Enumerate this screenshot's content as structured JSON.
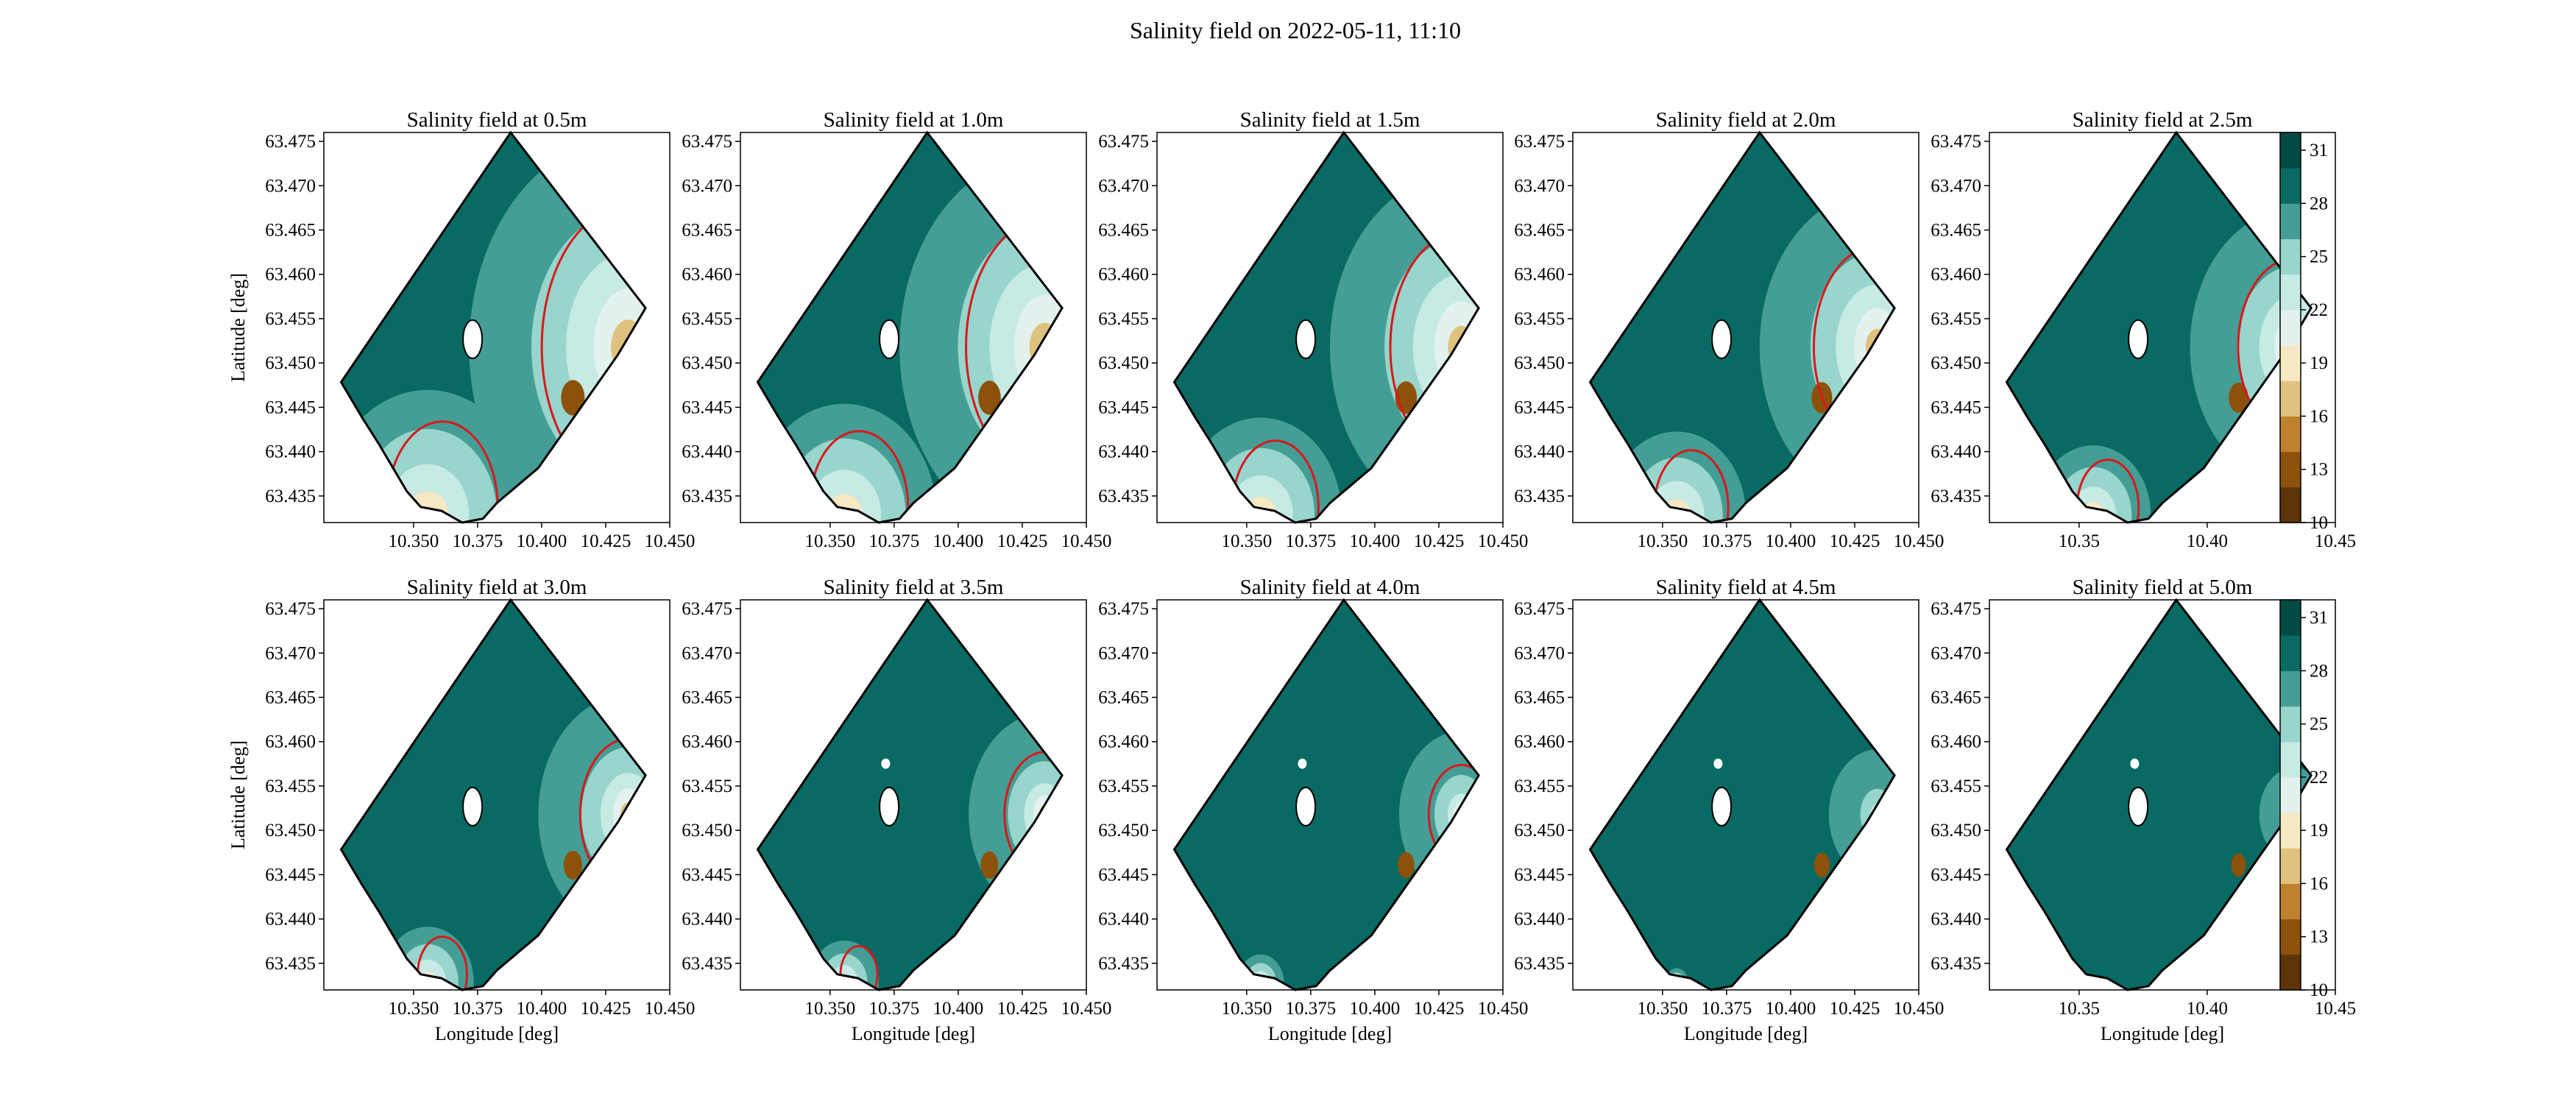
{
  "figure": {
    "suptitle": "Salinity field on 2022-05-11, 11:10"
  },
  "colors": {
    "level_fills": [
      "#5c3408",
      "#8c510a",
      "#bf812d",
      "#dfc27d",
      "#f6e8c3",
      "#e4f2ef",
      "#c7eae5",
      "#98d5cc",
      "#449e95",
      "#086a63",
      "#024b44"
    ],
    "contour_line": "#d7191c",
    "land": "#ffffff",
    "outline": "#000000"
  },
  "chart_data": [
    {
      "type": "contour",
      "title": "Salinity field at 0.5m",
      "xlabel": "",
      "ylabel": "Latitude [deg]",
      "xlim": [
        10.315,
        10.45
      ],
      "ylim": [
        63.432,
        63.476
      ],
      "xticks": [
        "10.350",
        "10.375",
        "10.400",
        "10.425",
        "10.450"
      ],
      "yticks": [
        "63.435",
        "63.440",
        "63.445",
        "63.450",
        "63.455",
        "63.460",
        "63.465",
        "63.470",
        "63.475"
      ],
      "depth_m": 0.5,
      "red_contour": true
    },
    {
      "type": "contour",
      "title": "Salinity field at 1.0m",
      "xlabel": "",
      "ylabel": "",
      "xlim": [
        10.315,
        10.45
      ],
      "ylim": [
        63.432,
        63.476
      ],
      "xticks": [
        "10.350",
        "10.375",
        "10.400",
        "10.425",
        "10.450"
      ],
      "yticks": [
        "63.435",
        "63.440",
        "63.445",
        "63.450",
        "63.455",
        "63.460",
        "63.465",
        "63.470",
        "63.475"
      ],
      "depth_m": 1.0,
      "red_contour": true
    },
    {
      "type": "contour",
      "title": "Salinity field at 1.5m",
      "xlabel": "",
      "ylabel": "",
      "xlim": [
        10.315,
        10.45
      ],
      "ylim": [
        63.432,
        63.476
      ],
      "xticks": [
        "10.350",
        "10.375",
        "10.400",
        "10.425",
        "10.450"
      ],
      "yticks": [
        "63.435",
        "63.440",
        "63.445",
        "63.450",
        "63.455",
        "63.460",
        "63.465",
        "63.470",
        "63.475"
      ],
      "depth_m": 1.5,
      "red_contour": true
    },
    {
      "type": "contour",
      "title": "Salinity field at 2.0m",
      "xlabel": "",
      "ylabel": "",
      "xlim": [
        10.315,
        10.45
      ],
      "ylim": [
        63.432,
        63.476
      ],
      "xticks": [
        "10.350",
        "10.375",
        "10.400",
        "10.425",
        "10.450"
      ],
      "yticks": [
        "63.435",
        "63.440",
        "63.445",
        "63.450",
        "63.455",
        "63.460",
        "63.465",
        "63.470",
        "63.475"
      ],
      "depth_m": 2.0,
      "red_contour": true
    },
    {
      "type": "contour",
      "title": "Salinity field at 2.5m",
      "xlabel": "",
      "ylabel": "",
      "xlim": [
        10.315,
        10.45
      ],
      "ylim": [
        63.432,
        63.476
      ],
      "xticks": [
        "10.35",
        "10.40",
        "10.45"
      ],
      "yticks": [
        "63.435",
        "63.440",
        "63.445",
        "63.450",
        "63.455",
        "63.460",
        "63.465",
        "63.470",
        "63.475"
      ],
      "depth_m": 2.5,
      "red_contour": true,
      "colorbar": {
        "ticks": [
          "10",
          "13",
          "16",
          "19",
          "22",
          "25",
          "28",
          "31"
        ],
        "min": 10,
        "max": 32
      }
    },
    {
      "type": "contour",
      "title": "Salinity field at 3.0m",
      "xlabel": "Longitude [deg]",
      "ylabel": "Latitude [deg]",
      "xlim": [
        10.315,
        10.45
      ],
      "ylim": [
        63.432,
        63.476
      ],
      "xticks": [
        "10.350",
        "10.375",
        "10.400",
        "10.425",
        "10.450"
      ],
      "yticks": [
        "63.435",
        "63.440",
        "63.445",
        "63.450",
        "63.455",
        "63.460",
        "63.465",
        "63.470",
        "63.475"
      ],
      "depth_m": 3.0,
      "red_contour": true
    },
    {
      "type": "contour",
      "title": "Salinity field at 3.5m",
      "xlabel": "Longitude [deg]",
      "ylabel": "",
      "xlim": [
        10.315,
        10.45
      ],
      "ylim": [
        63.432,
        63.476
      ],
      "xticks": [
        "10.350",
        "10.375",
        "10.400",
        "10.425",
        "10.450"
      ],
      "yticks": [
        "63.435",
        "63.440",
        "63.445",
        "63.450",
        "63.455",
        "63.460",
        "63.465",
        "63.470",
        "63.475"
      ],
      "depth_m": 3.5,
      "red_contour": true
    },
    {
      "type": "contour",
      "title": "Salinity field at 4.0m",
      "xlabel": "Longitude [deg]",
      "ylabel": "",
      "xlim": [
        10.315,
        10.45
      ],
      "ylim": [
        63.432,
        63.476
      ],
      "xticks": [
        "10.350",
        "10.375",
        "10.400",
        "10.425",
        "10.450"
      ],
      "yticks": [
        "63.435",
        "63.440",
        "63.445",
        "63.450",
        "63.455",
        "63.460",
        "63.465",
        "63.470",
        "63.475"
      ],
      "depth_m": 4.0,
      "red_contour": true
    },
    {
      "type": "contour",
      "title": "Salinity field at 4.5m",
      "xlabel": "Longitude [deg]",
      "ylabel": "",
      "xlim": [
        10.315,
        10.45
      ],
      "ylim": [
        63.432,
        63.476
      ],
      "xticks": [
        "10.350",
        "10.375",
        "10.400",
        "10.425",
        "10.450"
      ],
      "yticks": [
        "63.435",
        "63.440",
        "63.445",
        "63.450",
        "63.455",
        "63.460",
        "63.465",
        "63.470",
        "63.475"
      ],
      "depth_m": 4.5,
      "red_contour": false
    },
    {
      "type": "contour",
      "title": "Salinity field at 5.0m",
      "xlabel": "Longitude [deg]",
      "ylabel": "",
      "xlim": [
        10.315,
        10.45
      ],
      "ylim": [
        63.432,
        63.476
      ],
      "xticks": [
        "10.35",
        "10.40",
        "10.45"
      ],
      "yticks": [
        "63.435",
        "63.440",
        "63.445",
        "63.450",
        "63.455",
        "63.460",
        "63.465",
        "63.470",
        "63.475"
      ],
      "depth_m": 5.0,
      "red_contour": false,
      "colorbar": {
        "ticks": [
          "10",
          "13",
          "16",
          "19",
          "22",
          "25",
          "28",
          "31"
        ],
        "min": 10,
        "max": 32
      }
    }
  ]
}
